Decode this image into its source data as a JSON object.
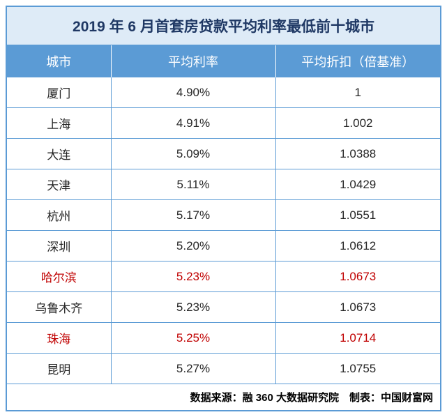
{
  "table": {
    "title": "2019 年 6 月首套房贷款平均利率最低前十城市",
    "columns": [
      "城市",
      "平均利率",
      "平均折扣（倍基准）"
    ],
    "rows": [
      {
        "city": "厦门",
        "rate": "4.90%",
        "discount": "1",
        "highlight": false
      },
      {
        "city": "上海",
        "rate": "4.91%",
        "discount": "1.002",
        "highlight": false
      },
      {
        "city": "大连",
        "rate": "5.09%",
        "discount": "1.0388",
        "highlight": false
      },
      {
        "city": "天津",
        "rate": "5.11%",
        "discount": "1.0429",
        "highlight": false
      },
      {
        "city": "杭州",
        "rate": "5.17%",
        "discount": "1.0551",
        "highlight": false
      },
      {
        "city": "深圳",
        "rate": "5.20%",
        "discount": "1.0612",
        "highlight": false
      },
      {
        "city": "哈尔滨",
        "rate": "5.23%",
        "discount": "1.0673",
        "highlight": true
      },
      {
        "city": "乌鲁木齐",
        "rate": "5.23%",
        "discount": "1.0673",
        "highlight": false
      },
      {
        "city": "珠海",
        "rate": "5.25%",
        "discount": "1.0714",
        "highlight": true
      },
      {
        "city": "昆明",
        "rate": "5.27%",
        "discount": "1.0755",
        "highlight": false
      }
    ],
    "footer": "数据来源：融 360 大数据研究院　制表：中国财富网",
    "colors": {
      "border": "#5b9bd5",
      "title_bg": "#deebf7",
      "title_text": "#1f3864",
      "header_bg": "#5b9bd5",
      "header_text": "#ffffff",
      "cell_text": "#262626",
      "highlight_text": "#c00000",
      "background": "#ffffff"
    },
    "font_sizes": {
      "title": 21,
      "header": 18,
      "cell": 17,
      "footer": 15
    }
  }
}
